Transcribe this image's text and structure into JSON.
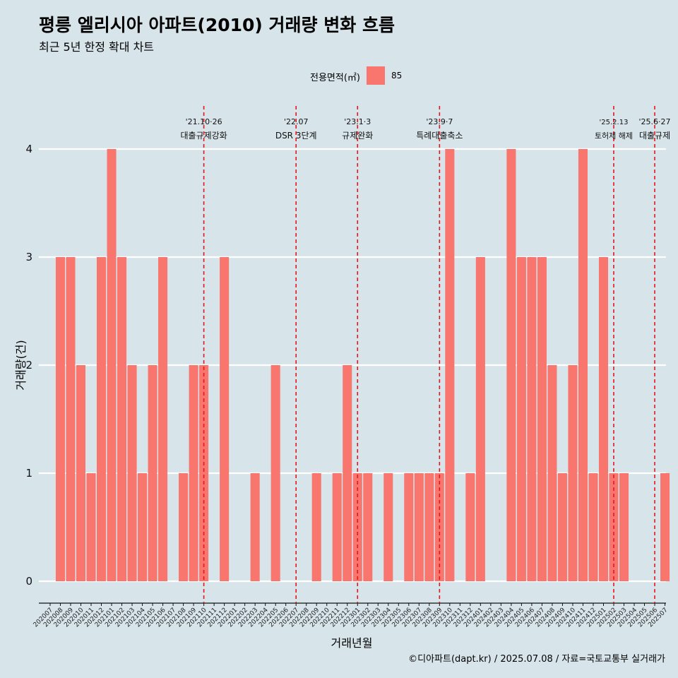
{
  "chart_data": {
    "type": "bar",
    "title": "평릉 엘리시아 아파트(2010) 거래량 변화 흐름",
    "subtitle": "최근 5년 한정 확대 차트",
    "xlabel": "거래년월",
    "ylabel": "거래량(건)",
    "legend": {
      "title": "전용면적(㎡)",
      "placement": "top",
      "entries": [
        {
          "name": "85",
          "color": "#f8766d"
        }
      ]
    },
    "ylim": [
      -0.17,
      4.4
    ],
    "yticks": [
      0,
      1,
      2,
      3,
      4
    ],
    "grid": true,
    "categories": [
      "202007",
      "202008",
      "202009",
      "202010",
      "202011",
      "202012",
      "202101",
      "202102",
      "202103",
      "202104",
      "202105",
      "202106",
      "202107",
      "202108",
      "202109",
      "202110",
      "202111",
      "202112",
      "202201",
      "202202",
      "202203",
      "202204",
      "202205",
      "202206",
      "202207",
      "202208",
      "202209",
      "202210",
      "202211",
      "202212",
      "202301",
      "202302",
      "202303",
      "202304",
      "202305",
      "202306",
      "202307",
      "202308",
      "202309",
      "202310",
      "202311",
      "202312",
      "202401",
      "202402",
      "202403",
      "202404",
      "202405",
      "202406",
      "202407",
      "202408",
      "202409",
      "202410",
      "202411",
      "202412",
      "202501",
      "202502",
      "202503",
      "202504",
      "202505",
      "202506",
      "202507"
    ],
    "series": [
      {
        "name": "85",
        "values": [
          0,
          3,
          3,
          2,
          1,
          3,
          4,
          3,
          2,
          1,
          2,
          3,
          0,
          1,
          2,
          2,
          0,
          3,
          0,
          0,
          1,
          0,
          2,
          0,
          0,
          0,
          1,
          0,
          1,
          2,
          1,
          1,
          0,
          1,
          0,
          1,
          1,
          1,
          1,
          4,
          0,
          1,
          3,
          0,
          0,
          4,
          3,
          3,
          3,
          2,
          1,
          2,
          4,
          1,
          3,
          1,
          1,
          0,
          0,
          0,
          1
        ]
      }
    ],
    "annotations": [
      {
        "at": "202110",
        "line1": "'21.10·26",
        "line2": "대출규제강화",
        "size": "normal"
      },
      {
        "at": "202207",
        "line1": "'22.07",
        "line2": "DSR 3단계",
        "size": "normal"
      },
      {
        "at": "202301",
        "line1": "'23.1·3",
        "line2": "규제완화",
        "size": "normal"
      },
      {
        "at": "202309",
        "line1": "'23.9·7",
        "line2": "특례대출축소",
        "size": "normal"
      },
      {
        "at": "202502",
        "line1": "'25.2.13",
        "line2": "토허제 해제",
        "size": "small"
      },
      {
        "at": "202506",
        "line1": "'25.6·27",
        "line2": "대출규제",
        "size": "normal"
      }
    ],
    "colors": {
      "bar": "#f8766d",
      "grid": "#ffffff",
      "vline": "#e8141c",
      "background": "#d7e4ea"
    }
  },
  "caption": "©디아파트(dapt.kr) / 2025.07.08 / 자료=국토교통부 실거래가"
}
